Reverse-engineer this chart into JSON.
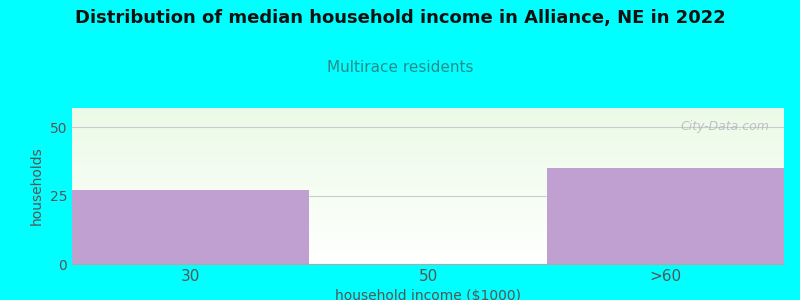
{
  "title": "Distribution of median household income in Alliance, NE in 2022",
  "subtitle": "Multirace residents",
  "categories": [
    "30",
    "50",
    ">60"
  ],
  "values": [
    27,
    0,
    35
  ],
  "bar_color": "#c0a0d0",
  "background_color": "#00ffff",
  "xlabel": "household income ($1000)",
  "ylabel": "households",
  "ylim": [
    0,
    57
  ],
  "yticks": [
    0,
    25,
    50
  ],
  "title_color": "#111111",
  "subtitle_color": "#2a8a8a",
  "axis_label_color": "#555555",
  "tick_color": "#555555",
  "watermark": "City-Data.com",
  "watermark_color": "#aaaabb",
  "grid_color": "#cccccc"
}
